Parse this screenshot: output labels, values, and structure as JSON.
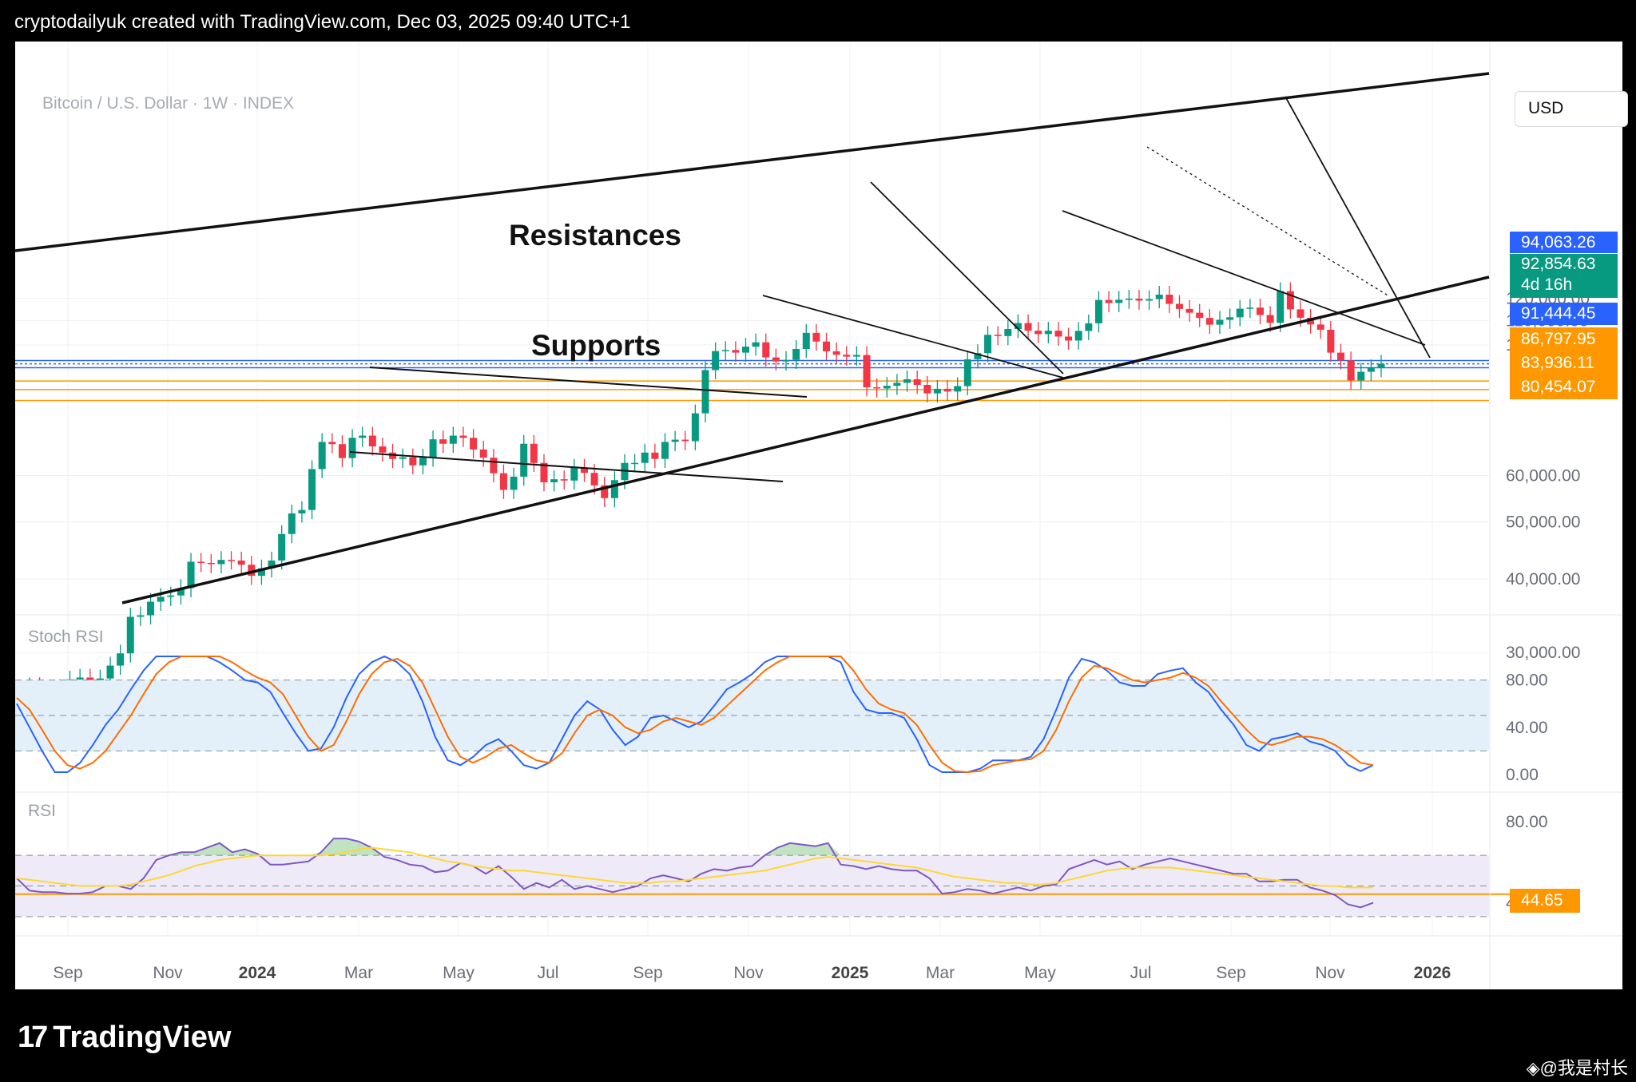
{
  "header": {
    "text": "cryptodailyuk created with TradingView.com, Dec 03, 2025 09:40 UTC+1"
  },
  "symbol": "Bitcoin / U.S. Dollar · 1W · INDEX",
  "currency": "USD",
  "annotations": {
    "resistances": "Resistances",
    "supports": "Supports"
  },
  "panes": {
    "stoch_rsi": "Stoch RSI",
    "rsi": "RSI"
  },
  "brand": {
    "name": "TradingView",
    "watermark": "◈@我是村长"
  },
  "colors": {
    "up": "#089981",
    "down": "#f23645",
    "stoch_k": "#2962ff",
    "stoch_d": "#ff6d00",
    "rsi_line": "#7e57c2",
    "rsi_ma": "#fdd835",
    "level_blue": "#2962ff",
    "level_orange": "#ff9800"
  },
  "badges": [
    {
      "text": "94,063.26",
      "color": "#2962ff"
    },
    {
      "text": "92,854.63",
      "color": "#089981"
    },
    {
      "text": "4d 16h",
      "color": "#089981"
    },
    {
      "text": "91,444.45",
      "color": "#2962ff"
    },
    {
      "text": "86,797.95",
      "color": "#ff9800"
    },
    {
      "text": "83,936.11",
      "color": "#ff9800"
    },
    {
      "text": "80,454.07",
      "color": "#ff9800"
    }
  ],
  "rsi_badge": {
    "text": "44.65",
    "color": "#ff9800"
  },
  "chart_data": [
    {
      "type": "candlestick",
      "title": "Bitcoin / U.S. Dollar · 1W · INDEX",
      "scale": "log",
      "y_ticks": [
        "120,000.00",
        "110,000.00",
        "100,000.00",
        "60,000.00",
        "50,000.00",
        "40,000.00",
        "30,000.00"
      ],
      "y_tick_values": [
        120000,
        110000,
        100000,
        60000,
        50000,
        40000,
        30000
      ],
      "x_ticks": [
        "Sep",
        "Nov",
        "2024",
        "Mar",
        "May",
        "Jul",
        "Sep",
        "Nov",
        "2025",
        "Mar",
        "May",
        "Jul",
        "Sep",
        "Nov",
        "2026"
      ],
      "horizontal_levels": [
        94063.26,
        92854.63,
        91444.45,
        86797.95,
        83936.11,
        80454.07
      ],
      "closes": [
        26300,
        25900,
        26000,
        26100,
        27000,
        27200,
        26900,
        27100,
        28500,
        29900,
        34500,
        34700,
        36600,
        37300,
        37500,
        38600,
        42800,
        42600,
        42400,
        43100,
        43000,
        42300,
        40500,
        41700,
        43000,
        47700,
        51700,
        52400,
        61500,
        68400,
        67800,
        64200,
        69500,
        70100,
        67200,
        65600,
        64000,
        64400,
        62400,
        64300,
        69100,
        67900,
        70100,
        69500,
        66400,
        64300,
        60500,
        56700,
        59700,
        67900,
        63000,
        58400,
        59100,
        58800,
        61800,
        60600,
        57700,
        54900,
        58900,
        63000,
        63000,
        65600,
        64000,
        68400,
        69000,
        68600,
        76500,
        90600,
        97600,
        98000,
        97000,
        99300,
        101000,
        95200,
        93700,
        94300,
        98400,
        104800,
        101300,
        97500,
        96200,
        95500,
        96100,
        84700,
        84300,
        85200,
        86200,
        87400,
        85500,
        82700,
        84200,
        83300,
        85100,
        94500,
        96800,
        104000,
        103500,
        106400,
        108900,
        105700,
        104300,
        105700,
        103300,
        101700,
        105600,
        108800,
        119200,
        117800,
        119300,
        119800,
        118900,
        119600,
        121700,
        117400,
        115100,
        113400,
        111100,
        108200,
        110300,
        111400,
        115200,
        115700,
        112400,
        109000,
        123400,
        114900,
        111200,
        108300,
        106100,
        97000,
        94100,
        87000,
        90000,
        91300,
        92854.63
      ]
    },
    {
      "type": "line",
      "title": "Stoch RSI",
      "y_ticks": [
        "80.00",
        "40.00",
        "0.00"
      ],
      "levels": [
        80,
        50,
        20
      ],
      "series": [
        {
          "values": [
            60,
            40,
            20,
            2,
            2,
            10,
            25,
            42,
            55,
            72,
            88,
            100,
            100,
            100,
            100,
            100,
            95,
            88,
            80,
            78,
            70,
            52,
            35,
            20,
            22,
            40,
            65,
            85,
            95,
            100,
            95,
            85,
            62,
            32,
            12,
            8,
            15,
            25,
            30,
            20,
            8,
            5,
            10,
            30,
            50,
            62,
            55,
            38,
            25,
            32,
            48,
            50,
            45,
            40,
            45,
            58,
            72,
            78,
            85,
            95,
            100,
            100,
            100,
            100,
            100,
            95,
            70,
            55,
            52,
            52,
            48,
            30,
            8,
            2,
            2,
            2,
            5,
            12,
            12,
            12,
            15,
            30,
            55,
            82,
            98,
            95,
            88,
            78,
            75,
            75,
            85,
            88,
            90,
            78,
            70,
            55,
            42,
            25,
            20,
            30,
            32,
            35,
            28,
            25,
            20,
            8,
            3,
            8
          ]
        },
        {
          "values": [
            65,
            55,
            38,
            20,
            8,
            5,
            10,
            20,
            35,
            50,
            68,
            85,
            95,
            100,
            100,
            100,
            100,
            95,
            88,
            82,
            78,
            68,
            50,
            32,
            20,
            25,
            45,
            68,
            85,
            95,
            98,
            92,
            78,
            55,
            32,
            15,
            10,
            15,
            22,
            25,
            18,
            12,
            10,
            18,
            35,
            50,
            55,
            50,
            40,
            35,
            38,
            45,
            48,
            45,
            42,
            48,
            58,
            68,
            78,
            88,
            95,
            100,
            100,
            100,
            100,
            100,
            88,
            72,
            60,
            55,
            52,
            42,
            25,
            10,
            3,
            2,
            3,
            8,
            10,
            12,
            13,
            20,
            38,
            62,
            82,
            92,
            90,
            85,
            80,
            78,
            80,
            82,
            86,
            82,
            75,
            62,
            50,
            38,
            28,
            25,
            28,
            32,
            32,
            30,
            25,
            18,
            10,
            8
          ]
        }
      ]
    },
    {
      "type": "line",
      "title": "RSI",
      "y_ticks": [
        "80.00",
        "40.00"
      ],
      "levels": [
        70,
        50,
        30
      ],
      "reference_line": 44.65,
      "series": [
        {
          "values": [
            55,
            47,
            46,
            46,
            45,
            45,
            46,
            50,
            50,
            48,
            55,
            67,
            70,
            72,
            72,
            75,
            78,
            72,
            74,
            71,
            64,
            64,
            65,
            66,
            72,
            81,
            81,
            79,
            75,
            69,
            67,
            64,
            63,
            59,
            60,
            65,
            63,
            58,
            63,
            56,
            48,
            52,
            49,
            54,
            48,
            50,
            48,
            46,
            48,
            50,
            55,
            57,
            55,
            53,
            58,
            61,
            60,
            62,
            63,
            70,
            75,
            78,
            77,
            76,
            78,
            64,
            63,
            61,
            63,
            61,
            60,
            60,
            55,
            45,
            46,
            48,
            47,
            45,
            47,
            49,
            47,
            50,
            51,
            61,
            64,
            67,
            64,
            66,
            61,
            64,
            66,
            68,
            66,
            64,
            62,
            60,
            58,
            58,
            53,
            53,
            54,
            54,
            49,
            47,
            44,
            38,
            36,
            39
          ]
        },
        {
          "values": [
            55,
            54,
            53,
            52,
            51,
            50,
            50,
            50,
            50,
            51,
            53,
            55,
            57,
            60,
            63,
            65,
            67,
            68,
            69,
            70,
            70,
            70,
            70,
            70,
            70,
            71,
            72,
            74,
            75,
            74,
            73,
            72,
            70,
            68,
            66,
            65,
            63,
            62,
            61,
            60,
            60,
            59,
            58,
            57,
            56,
            55,
            54,
            53,
            52,
            52,
            52,
            53,
            53,
            54,
            55,
            56,
            57,
            58,
            59,
            60,
            62,
            64,
            66,
            68,
            69,
            68,
            67,
            66,
            65,
            64,
            63,
            62,
            60,
            58,
            56,
            55,
            54,
            53,
            52,
            52,
            51,
            51,
            52,
            54,
            56,
            58,
            60,
            61,
            62,
            62,
            62,
            62,
            61,
            60,
            59,
            58,
            57,
            56,
            55,
            54,
            53,
            52,
            51,
            50,
            50,
            49,
            49,
            49
          ]
        }
      ]
    }
  ]
}
